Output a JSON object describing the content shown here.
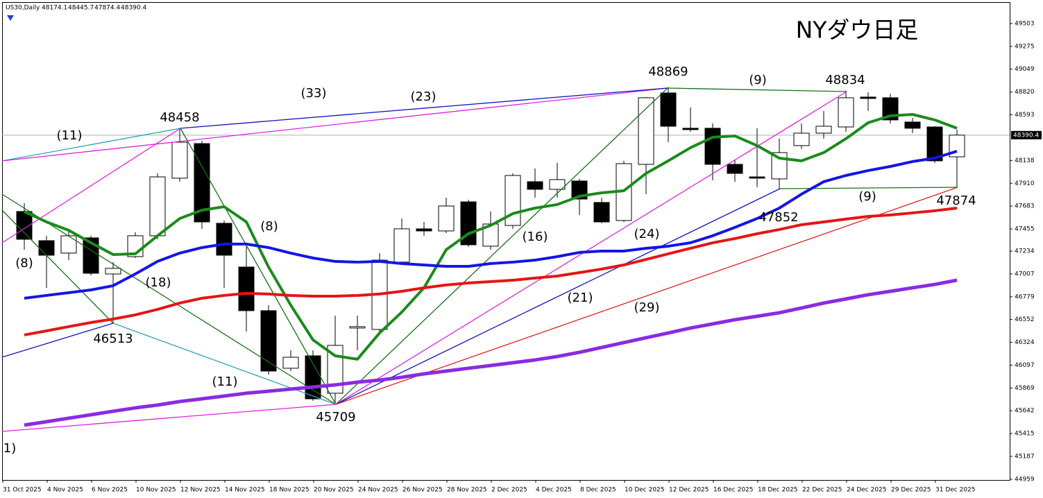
{
  "chart_data": {
    "type": "candlestick",
    "title": "NYダウ日足",
    "symbol": "US30,Daily",
    "categories": [
      "31 Oct 2025",
      null,
      "4 Nov 2025",
      null,
      "6 Nov 2025",
      null,
      "10 Nov 2025",
      null,
      "12 Nov 2025",
      null,
      "14 Nov 2025",
      null,
      "18 Nov 2025",
      null,
      "20 Nov 2025",
      null,
      "24 Nov 2025",
      null,
      "26 Nov 2025",
      null,
      "28 Nov 2025",
      null,
      "2 Dec 2025",
      null,
      "4 Dec 2025",
      null,
      "8 Dec 2025",
      null,
      "10 Dec 2025",
      null,
      "12 Dec 2025",
      null,
      "16 Dec 2025",
      null,
      "18 Dec 2025",
      null,
      "22 Dec 2025",
      null,
      "24 Dec 2025",
      null,
      "29 Dec 2025",
      null,
      "31 Dec 2025"
    ],
    "open": [
      47629,
      47338,
      47214,
      47366,
      47006,
      47179,
      47387,
      47961,
      48306,
      47511,
      47075,
      46640,
      46066,
      46190,
      45817,
      46467,
      46453,
      47124,
      47456,
      47435,
      47725,
      47283,
      47490,
      47926,
      47850,
      47933,
      47719,
      47539,
      48099,
      48811,
      48459,
      48459,
      48099,
      47974,
      47954,
      48286,
      48410,
      48472,
      48770,
      48763,
      48521,
      48472,
      48174.1
    ],
    "high": [
      47712,
      47387,
      47456,
      47387,
      47124,
      47421,
      48009,
      48458,
      48334,
      47539,
      47283,
      46695,
      46245,
      46245,
      46591,
      46591,
      47214,
      47559,
      47525,
      47767,
      47746,
      47629,
      48009,
      48057,
      48113,
      47954,
      47767,
      48134,
      48770,
      48869,
      48666,
      48507,
      48147,
      48459,
      48355,
      48507,
      48631,
      48834,
      48818,
      48804,
      48562,
      48479,
      48445.7
    ],
    "low": [
      47248,
      46868,
      47144,
      46992,
      46513,
      47165,
      47352,
      47926,
      47456,
      46868,
      46432,
      46003,
      46038,
      45741,
      45709,
      46245,
      46432,
      47110,
      47387,
      47414,
      47276,
      47248,
      47456,
      47767,
      47767,
      47594,
      47511,
      47525,
      47802,
      48320,
      48424,
      47940,
      47926,
      47871,
      47852,
      48251,
      48355,
      48424,
      48631,
      48507,
      48410,
      48113,
      47874.4
    ],
    "close": [
      47352,
      47193,
      47387,
      47013,
      47062,
      47387,
      47974,
      48320,
      47525,
      47193,
      46640,
      46038,
      46176,
      45761,
      46294,
      46481,
      47144,
      47456,
      47435,
      47684,
      47297,
      47504,
      47988,
      47850,
      47947,
      47753,
      47525,
      48106,
      48763,
      48479,
      48445,
      48099,
      48009,
      47961,
      48216,
      48410,
      48479,
      48763,
      48756,
      48542,
      48459,
      48134,
      48390.4
    ],
    "series": [
      {
        "color": "#1b8a1b",
        "width": 4,
        "values": [
          47629,
          47525,
          47442,
          47317,
          47200,
          47207,
          47387,
          47559,
          47642,
          47677,
          47525,
          47075,
          46695,
          46349,
          46190,
          46156,
          46418,
          46626,
          46868,
          47248,
          47407,
          47490,
          47608,
          47663,
          47698,
          47781,
          47815,
          47836,
          48009,
          48134,
          48265,
          48369,
          48382,
          48286,
          48161,
          48134,
          48216,
          48355,
          48514,
          48583,
          48597,
          48542,
          48459
        ]
      },
      {
        "color": "#1414e6",
        "width": 4,
        "values": [
          46764,
          46792,
          46819,
          46847,
          46889,
          47006,
          47131,
          47214,
          47269,
          47304,
          47304,
          47269,
          47214,
          47165,
          47131,
          47124,
          47131,
          47110,
          47096,
          47082,
          47082,
          47110,
          47124,
          47144,
          47179,
          47221,
          47234,
          47234,
          47262,
          47283,
          47317,
          47387,
          47470,
          47559,
          47663,
          47802,
          47926,
          47988,
          48037,
          48078,
          48127,
          48161,
          48230
        ]
      },
      {
        "color": "#e61414",
        "width": 4,
        "values": [
          46398,
          46439,
          46481,
          46522,
          46557,
          46598,
          46653,
          46716,
          46764,
          46792,
          46813,
          46806,
          46792,
          46785,
          46785,
          46792,
          46806,
          46833,
          46868,
          46896,
          46916,
          46930,
          46944,
          46965,
          46985,
          47020,
          47055,
          47096,
          47151,
          47207,
          47262,
          47317,
          47359,
          47407,
          47449,
          47497,
          47525,
          47553,
          47580,
          47594,
          47615,
          47636,
          47663
        ]
      },
      {
        "color": "#8a2be2",
        "width": 5,
        "values": [
          45499,
          45533,
          45568,
          45602,
          45637,
          45671,
          45699,
          45734,
          45761,
          45789,
          45817,
          45837,
          45858,
          45879,
          45900,
          45927,
          45948,
          45976,
          46010,
          46038,
          46066,
          46093,
          46121,
          46149,
          46183,
          46225,
          46273,
          46322,
          46370,
          46418,
          46467,
          46508,
          46550,
          46584,
          46619,
          46667,
          46716,
          46757,
          46799,
          46833,
          46868,
          46902,
          46944
        ]
      }
    ],
    "ylim": [
      44952,
      49717
    ],
    "yticks": [
      49503,
      49275,
      49049,
      48820,
      48593,
      48138,
      47910,
      47683,
      47455,
      47234,
      47007,
      46779,
      46552,
      46324,
      46097,
      45869,
      45642,
      45415,
      45187,
      44959
    ],
    "grid": false,
    "annotations": [
      "(8)",
      "(11)",
      "(33)",
      "(23)",
      "(18)",
      "(8)",
      "(16)",
      "(24)",
      "(9)",
      "(9)",
      "(21)",
      "(29)",
      "(11)",
      "1)"
    ],
    "pivot_labels": [
      48458,
      46513,
      45709,
      48869,
      48834,
      47852,
      47874
    ]
  }
}
